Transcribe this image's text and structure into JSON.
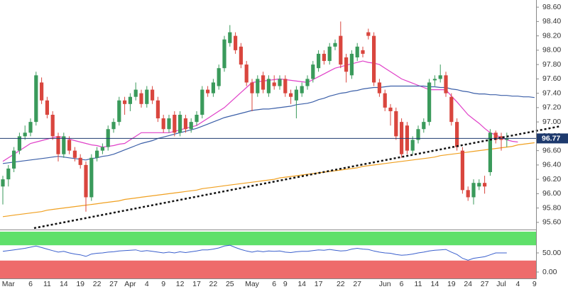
{
  "chart_data": [
    {
      "type": "candlestick",
      "categories": [
        null,
        "Mar",
        null,
        null,
        null,
        "6",
        null,
        null,
        "11",
        null,
        null,
        "14",
        null,
        null,
        "19",
        null,
        null,
        "22",
        null,
        null,
        "27",
        null,
        null,
        "Apr",
        null,
        null,
        "4",
        null,
        null,
        "9",
        null,
        null,
        "12",
        null,
        null,
        "17",
        null,
        null,
        "22",
        null,
        null,
        "25",
        null,
        null,
        null,
        "May",
        null,
        null,
        null,
        "6",
        null,
        "9",
        null,
        null,
        "14",
        null,
        null,
        "17",
        null,
        null,
        null,
        "22",
        null,
        null,
        "27",
        null,
        null,
        null,
        null,
        "Jun",
        null,
        null,
        "6",
        null,
        null,
        "11",
        null,
        null,
        "14",
        null,
        null,
        "19",
        null,
        null,
        "24",
        null,
        null,
        "27",
        null,
        null,
        "Jul",
        null,
        null,
        "4",
        null,
        null,
        "9"
      ],
      "open": [
        96.1,
        96.2,
        96.35,
        96.6,
        96.8,
        96.85,
        97.0,
        97.55,
        97.3,
        97.1,
        96.8,
        96.55,
        96.75,
        96.6,
        96.5,
        96.4,
        95.95,
        96.5,
        96.6,
        96.65,
        96.9,
        97.0,
        97.3,
        97.25,
        97.35,
        97.4,
        97.25,
        97.45,
        97.3,
        97.05,
        96.9,
        97.1,
        96.85,
        97.05,
        96.9,
        97.0,
        97.1,
        97.45,
        97.4,
        97.5,
        97.75,
        98.1,
        98.2,
        98.05,
        97.8,
        97.55,
        97.4,
        97.65,
        97.4,
        97.55,
        97.5,
        97.6,
        97.4,
        97.3,
        97.4,
        97.5,
        97.6,
        97.75,
        97.95,
        97.85,
        98.05,
        98.2,
        97.9,
        97.65,
        97.9,
        98.0,
        98.25,
        98.2,
        97.55,
        97.4,
        97.2,
        97.15,
        97.0,
        96.95,
        96.6,
        96.75,
        96.9,
        97.0,
        97.58,
        97.6,
        97.65,
        97.35,
        97.0,
        96.6,
        96.05,
        95.95,
        96.1,
        96.15,
        96.3,
        96.85,
        96.8,
        96.75,
        null,
        null,
        null,
        null,
        null
      ],
      "high": [
        96.25,
        96.4,
        96.65,
        96.85,
        96.95,
        97.05,
        97.7,
        97.62,
        97.35,
        97.15,
        96.85,
        96.85,
        96.8,
        96.65,
        96.55,
        96.45,
        96.55,
        96.65,
        96.7,
        96.95,
        97.05,
        97.35,
        97.35,
        97.4,
        97.55,
        97.45,
        97.5,
        97.5,
        97.35,
        97.1,
        97.1,
        97.15,
        97.15,
        97.1,
        97.05,
        97.15,
        97.5,
        97.5,
        97.6,
        97.8,
        98.2,
        98.35,
        98.25,
        98.1,
        97.85,
        97.6,
        97.65,
        97.7,
        97.65,
        97.65,
        97.65,
        97.65,
        97.45,
        97.5,
        97.55,
        97.65,
        97.85,
        98.0,
        98.0,
        98.1,
        98.15,
        98.4,
        97.95,
        98.0,
        98.1,
        98.05,
        98.3,
        98.25,
        97.6,
        97.45,
        97.25,
        97.2,
        97.05,
        97.0,
        96.8,
        96.95,
        97.05,
        97.6,
        97.65,
        97.8,
        97.7,
        97.4,
        97.05,
        96.65,
        96.1,
        96.2,
        96.2,
        96.25,
        96.9,
        96.88,
        96.85,
        96.85,
        null,
        null,
        null,
        null,
        null
      ],
      "low": [
        95.85,
        96.1,
        96.3,
        96.55,
        96.75,
        96.8,
        96.95,
        97.25,
        97.05,
        96.75,
        96.45,
        96.5,
        96.55,
        96.45,
        96.35,
        95.75,
        95.9,
        96.45,
        96.55,
        96.6,
        96.85,
        96.95,
        97.1,
        97.15,
        97.3,
        97.2,
        97.2,
        97.25,
        97.0,
        96.85,
        96.85,
        96.8,
        96.8,
        96.85,
        96.85,
        96.95,
        97.05,
        97.35,
        97.35,
        97.45,
        97.7,
        98.05,
        97.95,
        97.75,
        97.5,
        97.15,
        97.35,
        97.4,
        97.35,
        97.45,
        97.45,
        97.35,
        97.25,
        97.05,
        97.35,
        97.45,
        97.55,
        97.7,
        97.8,
        97.8,
        98.0,
        97.75,
        97.55,
        97.6,
        97.85,
        97.9,
        98.15,
        97.5,
        97.35,
        97.15,
        96.95,
        96.75,
        96.5,
        96.55,
        96.55,
        96.7,
        96.85,
        96.95,
        97.5,
        97.55,
        97.35,
        96.95,
        96.6,
        96.0,
        95.9,
        95.85,
        96.05,
        96.0,
        96.25,
        96.7,
        96.6,
        96.65,
        null,
        null,
        null,
        null,
        null
      ],
      "close": [
        96.2,
        96.35,
        96.6,
        96.8,
        96.85,
        97.0,
        97.65,
        97.3,
        97.1,
        96.8,
        96.55,
        96.8,
        96.6,
        96.5,
        96.4,
        95.95,
        96.5,
        96.6,
        96.65,
        96.9,
        97.0,
        97.3,
        97.25,
        97.35,
        97.45,
        97.25,
        97.45,
        97.3,
        97.05,
        96.9,
        97.05,
        96.85,
        97.1,
        96.9,
        97.0,
        97.1,
        97.45,
        97.4,
        97.55,
        97.75,
        98.15,
        98.25,
        98.0,
        97.8,
        97.55,
        97.4,
        97.6,
        97.45,
        97.6,
        97.5,
        97.6,
        97.4,
        97.35,
        97.45,
        97.5,
        97.6,
        97.8,
        97.95,
        97.85,
        98.05,
        98.1,
        97.8,
        97.7,
        97.95,
        98.05,
        97.95,
        98.2,
        97.55,
        97.4,
        97.2,
        97.15,
        96.8,
        96.55,
        96.6,
        96.75,
        96.9,
        97.0,
        97.55,
        97.6,
        97.65,
        97.4,
        97.0,
        96.65,
        96.05,
        95.95,
        96.15,
        96.15,
        96.1,
        96.85,
        96.75,
        96.75,
        96.77,
        null,
        null,
        null,
        null,
        null
      ],
      "up_color": "#3a9a5b",
      "down_color": "#d9463e",
      "lines": [
        {
          "color": "#e040c8",
          "values": [
            96.45,
            96.5,
            96.55,
            96.6,
            96.65,
            96.7,
            96.72,
            96.74,
            96.76,
            96.78,
            96.8,
            96.78,
            96.76,
            96.74,
            96.72,
            96.7,
            96.68,
            96.67,
            96.65,
            96.66,
            96.67,
            96.69,
            96.7,
            96.75,
            96.8,
            96.85,
            96.85,
            96.85,
            96.85,
            96.85,
            96.85,
            96.87,
            96.89,
            96.91,
            96.93,
            96.95,
            97.0,
            97.05,
            97.1,
            97.15,
            97.2,
            97.27,
            97.34,
            97.41,
            97.48,
            97.55,
            97.56,
            97.57,
            97.58,
            97.59,
            97.6,
            97.59,
            97.58,
            97.57,
            97.56,
            97.55,
            97.59,
            97.63,
            97.67,
            97.71,
            97.75,
            97.77,
            97.79,
            97.81,
            97.83,
            97.85,
            97.83,
            97.82,
            97.8,
            97.75,
            97.7,
            97.65,
            97.6,
            97.57,
            97.54,
            97.51,
            97.48,
            97.45,
            97.45,
            97.45,
            97.45,
            97.36,
            97.28,
            97.19,
            97.1,
            97.04,
            96.98,
            96.91,
            96.85,
            96.82,
            96.78,
            96.75,
            96.73,
            96.72,
            null,
            null,
            null
          ]
        },
        {
          "color": "#3b5fa8",
          "values": [
            96.42,
            96.43,
            96.44,
            96.45,
            96.46,
            96.47,
            96.48,
            96.49,
            96.5,
            96.51,
            96.52,
            96.51,
            96.5,
            96.49,
            96.48,
            96.47,
            96.49,
            96.5,
            96.52,
            96.53,
            96.55,
            96.58,
            96.61,
            96.64,
            96.67,
            96.7,
            96.72,
            96.74,
            96.77,
            96.79,
            96.81,
            96.83,
            96.85,
            96.87,
            96.89,
            96.91,
            96.94,
            96.97,
            97.0,
            97.03,
            97.06,
            97.08,
            97.1,
            97.12,
            97.14,
            97.16,
            97.17,
            97.18,
            97.18,
            97.19,
            97.2,
            97.21,
            97.22,
            97.24,
            97.25,
            97.26,
            97.28,
            97.31,
            97.33,
            97.36,
            97.38,
            97.4,
            97.41,
            97.43,
            97.44,
            97.46,
            97.47,
            97.48,
            97.48,
            97.49,
            97.5,
            97.5,
            97.5,
            97.5,
            97.5,
            97.5,
            97.5,
            97.49,
            97.49,
            97.48,
            97.48,
            97.46,
            97.45,
            97.43,
            97.42,
            97.4,
            97.39,
            97.39,
            97.38,
            97.38,
            97.37,
            97.37,
            97.36,
            97.36,
            97.35,
            97.35,
            97.34
          ]
        },
        {
          "color": "#f0a020",
          "values": [
            95.68,
            95.69,
            95.7,
            95.71,
            95.72,
            95.73,
            95.74,
            95.75,
            95.77,
            95.78,
            95.79,
            95.8,
            95.81,
            95.82,
            95.83,
            95.84,
            95.85,
            95.86,
            95.87,
            95.88,
            95.89,
            95.9,
            95.92,
            95.93,
            95.94,
            95.95,
            95.96,
            95.97,
            95.98,
            95.99,
            96.0,
            96.01,
            96.02,
            96.03,
            96.04,
            96.05,
            96.07,
            96.08,
            96.09,
            96.1,
            96.11,
            96.12,
            96.13,
            96.14,
            96.15,
            96.16,
            96.17,
            96.18,
            96.19,
            96.2,
            96.22,
            96.23,
            96.24,
            96.25,
            96.26,
            96.27,
            96.28,
            96.29,
            96.3,
            96.31,
            96.32,
            96.33,
            96.34,
            96.35,
            96.36,
            96.38,
            96.39,
            96.4,
            96.41,
            96.42,
            96.43,
            96.44,
            96.45,
            96.46,
            96.47,
            96.48,
            96.49,
            96.5,
            96.51,
            96.53,
            96.54,
            96.55,
            96.56,
            96.57,
            96.58,
            96.59,
            96.6,
            96.61,
            96.62,
            96.63,
            96.64,
            96.65,
            96.66,
            96.68,
            96.69,
            96.7,
            96.71
          ]
        }
      ],
      "last_price": 96.77,
      "ylim": [
        95.5,
        98.7
      ],
      "yticks": [
        {
          "value": 95.6,
          "label": "95.60"
        },
        {
          "value": 95.8,
          "label": "95.80"
        },
        {
          "value": 96.0,
          "label": "96.00"
        },
        {
          "value": 96.2,
          "label": "96.20"
        },
        {
          "value": 96.4,
          "label": "96.40"
        },
        {
          "value": 96.6,
          "label": "96.60"
        },
        {
          "value": 96.8,
          "label": "96.80"
        },
        {
          "value": 97.0,
          "label": "97.00"
        },
        {
          "value": 97.2,
          "label": "97.20"
        },
        {
          "value": 97.4,
          "label": "97.40"
        },
        {
          "value": 97.6,
          "label": "97.60"
        },
        {
          "value": 97.8,
          "label": "97.80"
        },
        {
          "value": 98.0,
          "label": "98.00"
        },
        {
          "value": 98.2,
          "label": "98.20"
        },
        {
          "value": 98.4,
          "label": "98.40"
        },
        {
          "value": 98.6,
          "label": "98.60"
        }
      ]
    },
    {
      "type": "line",
      "values": [
        54,
        56,
        58,
        60,
        62,
        65,
        68,
        64,
        60,
        56,
        52,
        54,
        50,
        47,
        45,
        41,
        47,
        49,
        50,
        52,
        53,
        55,
        56,
        57,
        58,
        54,
        56,
        54,
        52,
        50,
        52,
        50,
        53,
        51,
        53,
        55,
        58,
        58,
        60,
        63,
        68,
        70,
        64,
        59,
        55,
        52,
        55,
        53,
        55,
        54,
        55,
        52,
        51,
        53,
        54,
        54,
        56,
        58,
        57,
        59,
        57,
        55,
        56,
        60,
        62,
        60,
        59,
        55,
        52,
        50,
        49,
        46,
        44,
        45,
        47,
        50,
        52,
        55,
        57,
        58,
        59,
        52,
        46,
        36,
        31,
        36,
        38,
        40,
        45,
        50,
        50,
        50,
        null,
        null,
        null,
        null,
        null
      ],
      "color": "#3a5fcd",
      "overbought": 70,
      "oversold": 30,
      "ylim": [
        -16.7,
        105.6
      ],
      "yticks": [
        {
          "value": 0,
          "label": "0.00"
        },
        {
          "value": 50,
          "label": "50.00"
        }
      ]
    }
  ]
}
